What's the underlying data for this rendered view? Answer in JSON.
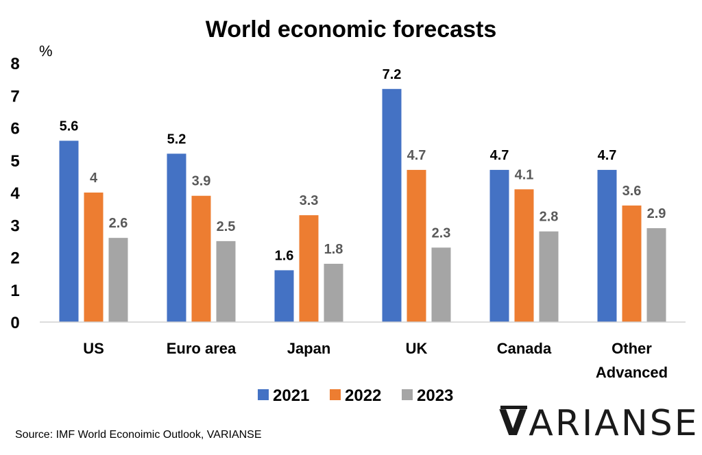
{
  "chart_data": {
    "type": "bar",
    "title": "World economic forecasts",
    "ylabel": "%",
    "xlabel": "",
    "ylim": [
      0,
      8
    ],
    "yticks": [
      0,
      1,
      2,
      3,
      4,
      5,
      6,
      7,
      8
    ],
    "grid": false,
    "legend_position": "bottom",
    "categories": [
      "US",
      "Euro area",
      "Japan",
      "UK",
      "Canada",
      "Other Advanced"
    ],
    "series": [
      {
        "name": "2021",
        "color": "#4472C4",
        "values": [
          5.6,
          5.2,
          1.6,
          7.2,
          4.7,
          4.7
        ],
        "labels": [
          "5.6",
          "5.2",
          "1.6",
          "7.2",
          "4.7",
          "4.7"
        ],
        "label_color": "#000000"
      },
      {
        "name": "2022",
        "color": "#ED7D31",
        "values": [
          4.0,
          3.9,
          3.3,
          4.7,
          4.1,
          3.6
        ],
        "labels": [
          "4",
          "3.9",
          "3.3",
          "4.7",
          "4.1",
          "3.6"
        ],
        "label_color": "#595959"
      },
      {
        "name": "2023",
        "color": "#A5A5A5",
        "values": [
          2.6,
          2.5,
          1.8,
          2.3,
          2.8,
          2.9
        ],
        "labels": [
          "2.6",
          "2.5",
          "1.8",
          "2.3",
          "2.8",
          "2.9"
        ],
        "label_color": "#595959"
      }
    ]
  },
  "footer": {
    "source": "Source:  IMF World Econoimic Outlook, VARIANSE",
    "brand_v": "V",
    "brand_rest": "ARIANSE"
  }
}
